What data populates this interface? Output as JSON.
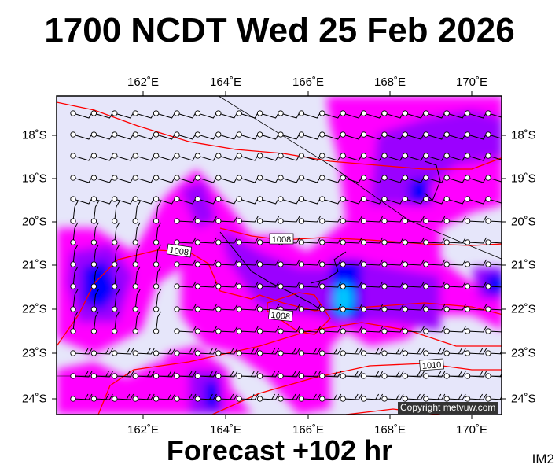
{
  "title": "1700 NCDT Wed 25 Feb 2026",
  "footer": "Forecast +102 hr",
  "image_id_label": "IM2",
  "copyright": "Copyright metvuw.com",
  "longitude_labels": [
    "162˚E",
    "164˚E",
    "166˚E",
    "168˚E",
    "170˚E"
  ],
  "latitude_labels": [
    "18˚S",
    "19˚S",
    "20˚S",
    "21˚S",
    "22˚S",
    "23˚S",
    "24˚S"
  ],
  "isobar_labels": [
    "1008",
    "1008",
    "1008",
    "1010"
  ],
  "colors": {
    "background": "#e6e6fa",
    "rain_light": "#ff00ff",
    "rain_mid": "#9b00ff",
    "rain_heavy": "#0000ff",
    "rain_extreme": "#00c8ff",
    "isobar": "#ff0000",
    "barb": "#000000"
  }
}
